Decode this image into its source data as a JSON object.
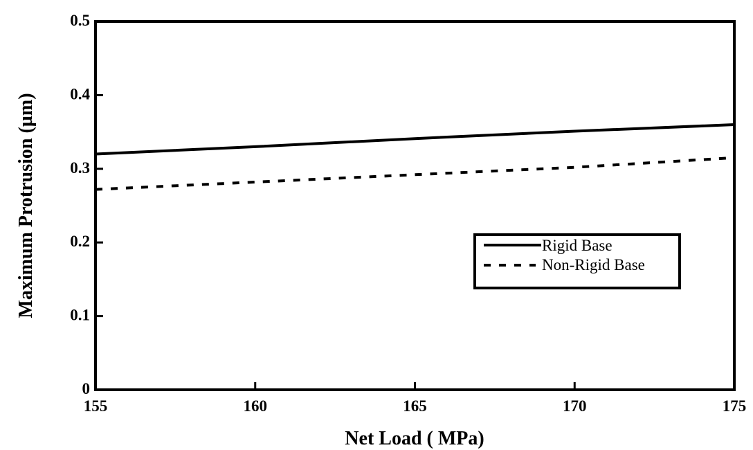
{
  "chart_data": {
    "type": "line",
    "title": "",
    "xlabel": "Net Load ( MPa)",
    "ylabel": "Maximum Protrusion (µm)",
    "xlim": [
      155,
      175
    ],
    "ylim": [
      0,
      0.5
    ],
    "xticks": [
      155,
      160,
      165,
      170,
      175
    ],
    "yticks": [
      0,
      0.1,
      0.2,
      0.3,
      0.4,
      0.5
    ],
    "xtick_labels": [
      "155",
      "160",
      "165",
      "170",
      "175"
    ],
    "ytick_labels": [
      "0",
      "0.1",
      "0.2",
      "0.3",
      "0.4",
      "0.5"
    ],
    "grid": false,
    "legend_position": "center-right",
    "series": [
      {
        "name": "Rigid Base",
        "style": "solid",
        "color": "#000000",
        "x": [
          155,
          160,
          165,
          170,
          175
        ],
        "values": [
          0.32,
          0.33,
          0.341,
          0.351,
          0.36
        ]
      },
      {
        "name": "Non-Rigid Base",
        "style": "dashed",
        "color": "#000000",
        "x": [
          155,
          160,
          165,
          170,
          175
        ],
        "values": [
          0.272,
          0.282,
          0.292,
          0.302,
          0.315
        ]
      }
    ]
  }
}
